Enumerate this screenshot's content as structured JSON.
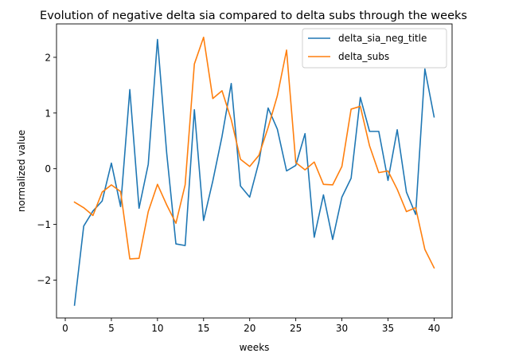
{
  "chart_data": {
    "type": "line",
    "title": "Evolution of negative delta sia compared to delta subs through the weeks",
    "xlabel": "weeks",
    "ylabel": "normalized value",
    "xlim": [
      -0.95,
      41.95
    ],
    "ylim": [
      -2.68,
      2.6
    ],
    "xticks": [
      0,
      5,
      10,
      15,
      20,
      25,
      30,
      35,
      40
    ],
    "yticks": [
      -2,
      -1,
      0,
      1,
      2
    ],
    "xtick_labels": [
      "0",
      "5",
      "10",
      "15",
      "20",
      "25",
      "30",
      "35",
      "40"
    ],
    "ytick_labels": [
      "−2",
      "−1",
      "0",
      "1",
      "2"
    ],
    "grid": false,
    "legend_position": "upper right",
    "x": [
      1,
      2,
      3,
      4,
      5,
      6,
      7,
      8,
      9,
      10,
      11,
      12,
      13,
      14,
      15,
      16,
      17,
      18,
      19,
      20,
      21,
      22,
      23,
      24,
      25,
      26,
      27,
      28,
      29,
      30,
      31,
      32,
      33,
      34,
      35,
      36,
      37,
      38,
      39,
      40
    ],
    "series": [
      {
        "name": "delta_sia_neg_title",
        "color": "#1f77b4",
        "values": [
          -2.45,
          -1.03,
          -0.76,
          -0.58,
          0.1,
          -0.68,
          1.42,
          -0.71,
          0.08,
          2.32,
          0.28,
          -1.35,
          -1.38,
          1.06,
          -0.93,
          -0.22,
          0.58,
          1.53,
          -0.31,
          -0.51,
          0.12,
          1.09,
          0.71,
          -0.04,
          0.06,
          0.63,
          -1.23,
          -0.47,
          -1.27,
          -0.51,
          -0.17,
          1.28,
          0.67,
          0.67,
          -0.21,
          0.7,
          -0.42,
          -0.82,
          1.79,
          0.93
        ]
      },
      {
        "name": "delta_subs",
        "color": "#ff7f0e",
        "values": [
          -0.6,
          -0.7,
          -0.84,
          -0.42,
          -0.29,
          -0.41,
          -1.62,
          -1.61,
          -0.77,
          -0.28,
          -0.65,
          -0.98,
          -0.29,
          1.88,
          2.36,
          1.26,
          1.4,
          0.88,
          0.17,
          0.04,
          0.24,
          0.74,
          1.31,
          2.13,
          0.11,
          -0.02,
          0.12,
          -0.28,
          -0.29,
          0.04,
          1.07,
          1.12,
          0.41,
          -0.07,
          -0.04,
          -0.37,
          -0.77,
          -0.7,
          -1.45,
          -1.78
        ]
      }
    ]
  }
}
